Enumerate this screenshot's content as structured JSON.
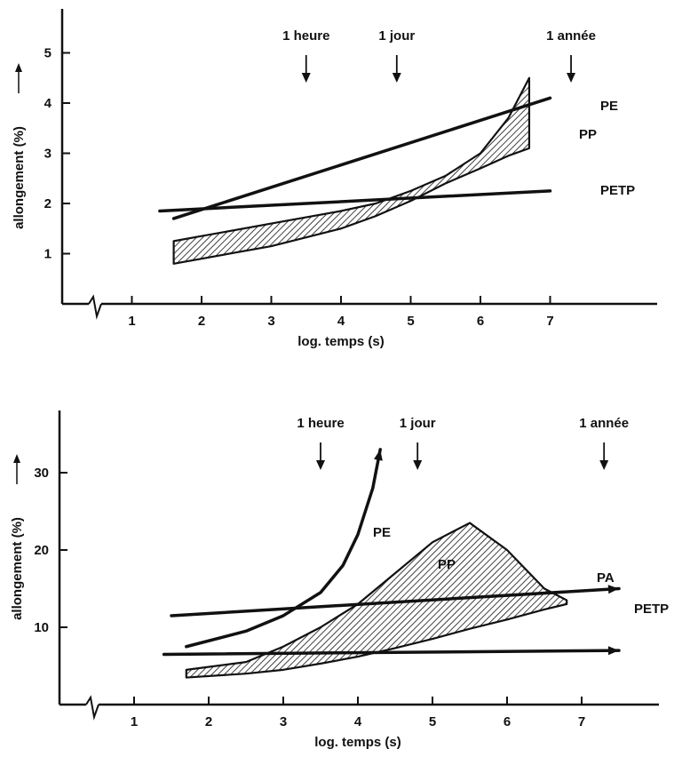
{
  "chart_data": [
    {
      "type": "line",
      "xlabel": "log. temps (s)",
      "ylabel": "allongement (%)",
      "xlim": [
        0,
        7.4
      ],
      "ylim": [
        0,
        5.5
      ],
      "xticks": [
        1,
        2,
        3,
        4,
        5,
        6,
        7
      ],
      "yticks": [
        1,
        2,
        3,
        4,
        5
      ],
      "annotations": [
        {
          "text": "1 heure",
          "x": 3.5
        },
        {
          "text": "1 jour",
          "x": 4.8
        },
        {
          "text": "1 année",
          "x": 7.3
        }
      ],
      "series": [
        {
          "name": "PE",
          "kind": "line",
          "x": [
            1.6,
            7.0
          ],
          "y": [
            1.7,
            4.1
          ]
        },
        {
          "name": "PETP",
          "kind": "line",
          "x": [
            1.4,
            7.0
          ],
          "y": [
            1.85,
            2.25
          ]
        },
        {
          "name": "PP",
          "kind": "band",
          "x": [
            1.6,
            2.0,
            3.0,
            4.0,
            4.5,
            5.0,
            5.5,
            6.0,
            6.4,
            6.7
          ],
          "upper": [
            1.25,
            1.35,
            1.6,
            1.85,
            2.0,
            2.25,
            2.55,
            3.0,
            3.7,
            4.5
          ],
          "lower": [
            0.8,
            0.9,
            1.15,
            1.5,
            1.75,
            2.05,
            2.4,
            2.7,
            2.95,
            3.1
          ]
        }
      ]
    },
    {
      "type": "line",
      "xlabel": "log. temps (s)",
      "ylabel": "allongement (%)",
      "xlim": [
        0,
        7.4
      ],
      "ylim": [
        0,
        38
      ],
      "xticks": [
        1,
        2,
        3,
        4,
        5,
        6,
        7
      ],
      "yticks": [
        10,
        20,
        30
      ],
      "annotations": [
        {
          "text": "1 heure",
          "x": 3.5
        },
        {
          "text": "1 jour",
          "x": 4.8
        },
        {
          "text": "1 année",
          "x": 7.3
        }
      ],
      "series": [
        {
          "name": "PE",
          "kind": "line",
          "x": [
            1.7,
            2.5,
            3.0,
            3.5,
            3.8,
            4.0,
            4.2,
            4.3
          ],
          "y": [
            7.5,
            9.5,
            11.5,
            14.5,
            18,
            22,
            28,
            33
          ]
        },
        {
          "name": "PA",
          "kind": "line",
          "x": [
            1.5,
            7.5
          ],
          "y": [
            11.5,
            15
          ]
        },
        {
          "name": "PETP",
          "kind": "line",
          "x": [
            1.4,
            7.5
          ],
          "y": [
            6.5,
            7.0
          ]
        },
        {
          "name": "PP",
          "kind": "band",
          "x": [
            1.7,
            2.5,
            3.0,
            3.5,
            4.0,
            4.5,
            5.0,
            5.5,
            6.0,
            6.5,
            6.8
          ],
          "upper": [
            4.5,
            5.5,
            7.5,
            10,
            13,
            17,
            21,
            23.5,
            20,
            15,
            13.5
          ],
          "lower": [
            3.5,
            4.0,
            4.5,
            5.3,
            6.2,
            7.3,
            8.5,
            9.8,
            11,
            12.3,
            13
          ]
        }
      ]
    }
  ]
}
